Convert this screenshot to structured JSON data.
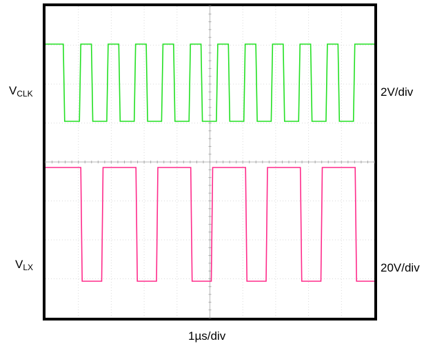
{
  "chart_data": {
    "type": "line",
    "x_unit": "µs",
    "xlim": [
      0,
      9.6
    ],
    "grid": true,
    "series": [
      {
        "name": "V",
        "name_subscript": "CLK",
        "scale": "2V/div",
        "color": "#22e022",
        "unit": "V",
        "low": 0,
        "high": 5,
        "transitions_us": [
          0.52,
          0.99,
          1.34,
          1.79,
          2.14,
          2.59,
          2.94,
          3.39,
          3.74,
          4.19,
          4.54,
          4.99,
          5.34,
          5.79,
          6.14,
          6.59,
          6.94,
          7.39,
          7.74,
          8.19,
          8.54,
          8.99
        ],
        "initial_state": "high"
      },
      {
        "name": "V",
        "name_subscript": "LX",
        "scale": "20V/div",
        "color": "#ff2a8a",
        "unit": "V",
        "low": -1,
        "high": 33,
        "transitions_us": [
          1.03,
          1.64,
          2.64,
          3.24,
          4.24,
          4.84,
          5.84,
          6.44,
          7.44,
          8.04,
          9.04
        ],
        "initial_state": "high"
      }
    ],
    "xlabel": "1µs/div"
  }
}
